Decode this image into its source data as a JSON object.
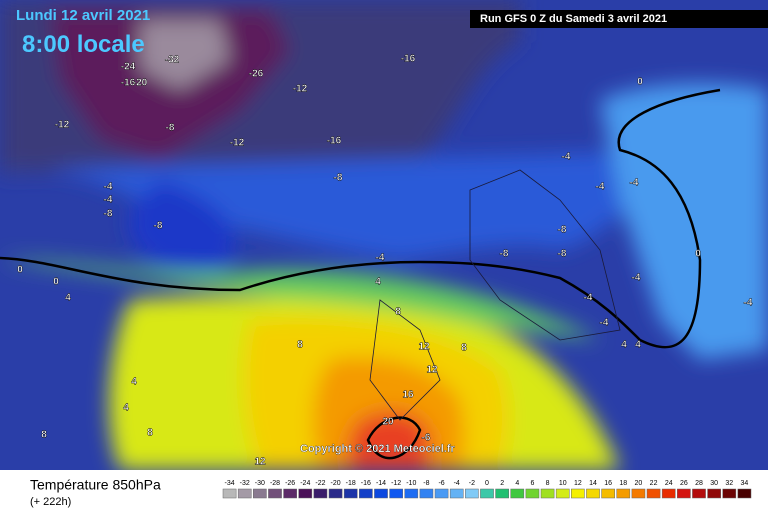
{
  "header": {
    "date": "Lundi 12 avril 2021",
    "time": "8:00 locale",
    "run": "Run GFS 0 Z du Samedi 3 avril 2021",
    "copyright": "Copyright © 2021 Meteociel.fr"
  },
  "legend": {
    "title": "Température 850hPa",
    "lead": "(+ 222h)",
    "labels": [
      -34,
      -32,
      -30,
      -28,
      -26,
      -24,
      -22,
      -20,
      -18,
      -16,
      -14,
      -12,
      -10,
      -8,
      -6,
      -4,
      -2,
      0,
      2,
      4,
      6,
      8,
      10,
      12,
      14,
      16,
      18,
      20,
      22,
      24,
      26,
      28,
      30,
      32,
      34
    ],
    "colors": [
      "#b8b8b8",
      "#a49aa6",
      "#8a7a90",
      "#72507a",
      "#5c2a68",
      "#4a1058",
      "#3a1c6a",
      "#2a2a8a",
      "#1c34a8",
      "#1440c8",
      "#0c48e0",
      "#1058f0",
      "#1e6cf2",
      "#3282f2",
      "#4a9af4",
      "#64b2f4",
      "#80caf6",
      "#3cc8a8",
      "#20c070",
      "#40c840",
      "#70d430",
      "#a0e020",
      "#d4ec18",
      "#f4f000",
      "#f4d800",
      "#f4bc00",
      "#f49c00",
      "#f47a00",
      "#f05000",
      "#e82c00",
      "#d41410",
      "#b40c0c",
      "#900808",
      "#6c0404",
      "#480000"
    ]
  },
  "map_labels": [
    -32,
    -24,
    -26,
    -16,
    -20,
    -16,
    -12,
    -12,
    -8,
    -12,
    -16,
    -8,
    -4,
    -4,
    -8,
    -8,
    0,
    -4,
    -4,
    -4,
    -8,
    -8,
    -8,
    -4,
    -4,
    0,
    -4,
    -4,
    -4,
    4,
    0,
    4,
    8,
    12,
    8,
    12,
    16,
    20,
    -6,
    8,
    4,
    4,
    8,
    8,
    12,
    4,
    4,
    0
  ]
}
